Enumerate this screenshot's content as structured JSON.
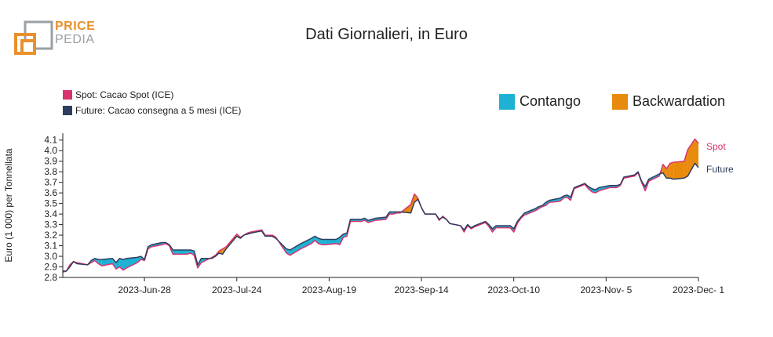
{
  "logo": {
    "line1": "PRICE",
    "line2": "PEDIA"
  },
  "title": "Dati Giornalieri, in Euro",
  "colors": {
    "spot": "#d8336f",
    "future": "#2f3e5e",
    "contango": "#1eb1d3",
    "backwardation": "#e88a0c",
    "logo_orange": "#e8912c",
    "logo_gray": "#9aa0a6"
  },
  "legend": {
    "spot_label": "Spot: Cacao Spot (ICE)",
    "future_label": "Future: Cacao consegna a 5 mesi (ICE)",
    "contango_label": "Contango",
    "backwardation_label": "Backwardation"
  },
  "chart_data": {
    "type": "area",
    "title": "Dati Giornalieri, in Euro",
    "ylabel": "Euro (1 000) per Tonnellata",
    "xlabel": "",
    "ylim": [
      2.8,
      4.15
    ],
    "yticks": [
      "2.8",
      "2.9",
      "3.0",
      "3.1",
      "3.2",
      "3.3",
      "3.4",
      "3.5",
      "3.6",
      "3.7",
      "3.8",
      "3.9",
      "4.0",
      "4.1"
    ],
    "x_start": "2023-06-05",
    "x_end": "2023-12-01",
    "xticks": [
      {
        "date": "2023-06-28",
        "label": "2023-Jun-28"
      },
      {
        "date": "2023-07-24",
        "label": "2023-Jul-24"
      },
      {
        "date": "2023-08-19",
        "label": "2023-Aug-19"
      },
      {
        "date": "2023-09-14",
        "label": "2023-Sep-14"
      },
      {
        "date": "2023-10-10",
        "label": "2023-Oct-10"
      },
      {
        "date": "2023-11-05",
        "label": "2023-Nov- 5"
      },
      {
        "date": "2023-12-01",
        "label": "2023-Dec- 1"
      }
    ],
    "end_labels": {
      "spot": "Spot",
      "future": "Future"
    },
    "dates": [
      "2023-06-05",
      "2023-06-06",
      "2023-06-07",
      "2023-06-08",
      "2023-06-09",
      "2023-06-12",
      "2023-06-13",
      "2023-06-14",
      "2023-06-15",
      "2023-06-16",
      "2023-06-19",
      "2023-06-20",
      "2023-06-21",
      "2023-06-22",
      "2023-06-23",
      "2023-06-26",
      "2023-06-27",
      "2023-06-28",
      "2023-06-29",
      "2023-06-30",
      "2023-07-03",
      "2023-07-04",
      "2023-07-05",
      "2023-07-06",
      "2023-07-07",
      "2023-07-10",
      "2023-07-11",
      "2023-07-12",
      "2023-07-13",
      "2023-07-14",
      "2023-07-17",
      "2023-07-18",
      "2023-07-19",
      "2023-07-20",
      "2023-07-21",
      "2023-07-24",
      "2023-07-25",
      "2023-07-26",
      "2023-07-27",
      "2023-07-28",
      "2023-07-31",
      "2023-08-01",
      "2023-08-02",
      "2023-08-03",
      "2023-08-04",
      "2023-08-07",
      "2023-08-08",
      "2023-08-09",
      "2023-08-10",
      "2023-08-11",
      "2023-08-14",
      "2023-08-15",
      "2023-08-16",
      "2023-08-17",
      "2023-08-18",
      "2023-08-21",
      "2023-08-22",
      "2023-08-23",
      "2023-08-24",
      "2023-08-25",
      "2023-08-28",
      "2023-08-29",
      "2023-08-30",
      "2023-08-31",
      "2023-09-01",
      "2023-09-04",
      "2023-09-05",
      "2023-09-06",
      "2023-09-07",
      "2023-09-08",
      "2023-09-11",
      "2023-09-12",
      "2023-09-13",
      "2023-09-14",
      "2023-09-15",
      "2023-09-18",
      "2023-09-19",
      "2023-09-20",
      "2023-09-21",
      "2023-09-22",
      "2023-09-25",
      "2023-09-26",
      "2023-09-27",
      "2023-09-28",
      "2023-09-29",
      "2023-10-02",
      "2023-10-03",
      "2023-10-04",
      "2023-10-05",
      "2023-10-06",
      "2023-10-09",
      "2023-10-10",
      "2023-10-11",
      "2023-10-12",
      "2023-10-13",
      "2023-10-16",
      "2023-10-17",
      "2023-10-18",
      "2023-10-19",
      "2023-10-20",
      "2023-10-23",
      "2023-10-24",
      "2023-10-25",
      "2023-10-26",
      "2023-10-27",
      "2023-10-30",
      "2023-10-31",
      "2023-11-01",
      "2023-11-02",
      "2023-11-03",
      "2023-11-06",
      "2023-11-07",
      "2023-11-08",
      "2023-11-09",
      "2023-11-10",
      "2023-11-13",
      "2023-11-14",
      "2023-11-15",
      "2023-11-16",
      "2023-11-17",
      "2023-11-20",
      "2023-11-21",
      "2023-11-22",
      "2023-11-23",
      "2023-11-24",
      "2023-11-27",
      "2023-11-28",
      "2023-11-29",
      "2023-11-30",
      "2023-12-01"
    ],
    "series": [
      {
        "name": "Spot",
        "values": [
          2.85,
          2.86,
          2.92,
          2.95,
          2.94,
          2.92,
          2.94,
          2.96,
          2.93,
          2.91,
          2.93,
          2.88,
          2.9,
          2.87,
          2.89,
          2.94,
          2.97,
          2.96,
          3.07,
          3.09,
          3.11,
          3.12,
          3.1,
          3.02,
          3.02,
          3.02,
          3.03,
          3.01,
          2.89,
          2.94,
          2.99,
          3.01,
          3.05,
          3.07,
          3.09,
          3.21,
          3.18,
          3.2,
          3.22,
          3.23,
          3.25,
          3.2,
          3.2,
          3.2,
          3.18,
          3.03,
          3.01,
          3.03,
          3.05,
          3.07,
          3.12,
          3.15,
          3.12,
          3.11,
          3.11,
          3.12,
          3.11,
          3.18,
          3.19,
          3.33,
          3.33,
          3.34,
          3.32,
          3.33,
          3.34,
          3.35,
          3.4,
          3.4,
          3.41,
          3.41,
          3.49,
          3.59,
          3.55,
          3.46,
          3.4,
          3.4,
          3.34,
          3.38,
          3.35,
          3.31,
          3.29,
          3.23,
          3.29,
          3.26,
          3.28,
          3.32,
          3.28,
          3.23,
          3.27,
          3.27,
          3.27,
          3.23,
          3.31,
          3.36,
          3.39,
          3.43,
          3.45,
          3.47,
          3.48,
          3.51,
          3.52,
          3.55,
          3.56,
          3.53,
          3.64,
          3.68,
          3.64,
          3.61,
          3.6,
          3.62,
          3.65,
          3.65,
          3.65,
          3.67,
          3.74,
          3.76,
          3.79,
          3.7,
          3.62,
          3.71,
          3.76,
          3.87,
          3.83,
          3.88,
          3.89,
          3.9,
          4.01,
          4.06,
          4.11,
          4.07
        ]
      },
      {
        "name": "Future",
        "values": [
          2.86,
          2.86,
          2.9,
          2.95,
          2.93,
          2.92,
          2.96,
          2.98,
          2.97,
          2.97,
          2.98,
          2.94,
          2.98,
          2.97,
          2.98,
          2.99,
          3.0,
          2.97,
          3.09,
          3.11,
          3.13,
          3.13,
          3.11,
          3.06,
          3.06,
          3.06,
          3.06,
          3.05,
          2.92,
          2.98,
          2.98,
          3.0,
          3.03,
          3.02,
          3.07,
          3.19,
          3.17,
          3.2,
          3.21,
          3.22,
          3.24,
          3.19,
          3.19,
          3.19,
          3.17,
          3.07,
          3.06,
          3.08,
          3.1,
          3.12,
          3.17,
          3.19,
          3.17,
          3.16,
          3.16,
          3.16,
          3.18,
          3.21,
          3.22,
          3.35,
          3.35,
          3.36,
          3.34,
          3.35,
          3.36,
          3.37,
          3.42,
          3.42,
          3.42,
          3.42,
          3.41,
          3.51,
          3.54,
          3.46,
          3.4,
          3.4,
          3.35,
          3.37,
          3.35,
          3.31,
          3.29,
          3.25,
          3.3,
          3.27,
          3.29,
          3.33,
          3.3,
          3.26,
          3.29,
          3.29,
          3.29,
          3.26,
          3.33,
          3.37,
          3.41,
          3.45,
          3.47,
          3.48,
          3.51,
          3.53,
          3.55,
          3.57,
          3.58,
          3.56,
          3.65,
          3.69,
          3.66,
          3.64,
          3.63,
          3.65,
          3.67,
          3.67,
          3.67,
          3.68,
          3.75,
          3.77,
          3.8,
          3.71,
          3.66,
          3.73,
          3.78,
          3.79,
          3.74,
          3.74,
          3.73,
          3.74,
          3.76,
          3.82,
          3.88,
          3.84
        ]
      }
    ]
  }
}
